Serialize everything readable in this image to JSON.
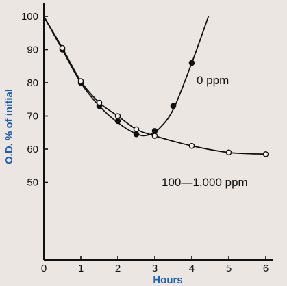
{
  "chart_data": {
    "type": "line",
    "title": "",
    "xlabel": "Hours",
    "ylabel": "O.D. % of initial",
    "xlim": [
      0,
      6.2
    ],
    "ylim": [
      45,
      100
    ],
    "xticks": [
      0,
      1,
      2,
      3,
      4,
      5,
      6
    ],
    "yticks": [
      50,
      60,
      70,
      80,
      90,
      100
    ],
    "grid": false,
    "axis_color": "#111111",
    "xlabel_color": "#1f5fb0",
    "ylabel_color": "#1f5fb0",
    "series": [
      {
        "name": "0 ppm",
        "marker": "filled-circle",
        "points": [
          {
            "x": 0.5,
            "y": 90
          },
          {
            "x": 1.0,
            "y": 80
          },
          {
            "x": 1.5,
            "y": 73
          },
          {
            "x": 2.0,
            "y": 68.5
          },
          {
            "x": 2.5,
            "y": 64.5
          },
          {
            "x": 3.0,
            "y": 65.5
          },
          {
            "x": 3.5,
            "y": 73
          },
          {
            "x": 4.0,
            "y": 86
          }
        ],
        "curve": [
          {
            "x": 0,
            "y": 100
          },
          {
            "x": 0.5,
            "y": 90
          },
          {
            "x": 1.0,
            "y": 80
          },
          {
            "x": 1.5,
            "y": 73
          },
          {
            "x": 2.0,
            "y": 68
          },
          {
            "x": 2.5,
            "y": 64.6
          },
          {
            "x": 2.8,
            "y": 64.2
          },
          {
            "x": 3.1,
            "y": 66
          },
          {
            "x": 3.5,
            "y": 72
          },
          {
            "x": 4.0,
            "y": 86
          },
          {
            "x": 4.45,
            "y": 100
          }
        ]
      },
      {
        "name": "100—1,000 ppm",
        "marker": "open-circle",
        "points": [
          {
            "x": 0.5,
            "y": 90.5
          },
          {
            "x": 1.0,
            "y": 80.5
          },
          {
            "x": 1.5,
            "y": 74
          },
          {
            "x": 2.0,
            "y": 70
          },
          {
            "x": 2.5,
            "y": 66
          },
          {
            "x": 3.0,
            "y": 64
          },
          {
            "x": 4.0,
            "y": 61
          },
          {
            "x": 5.0,
            "y": 59
          },
          {
            "x": 6.0,
            "y": 58.5
          }
        ],
        "curve": [
          {
            "x": 0,
            "y": 100
          },
          {
            "x": 0.5,
            "y": 90.5
          },
          {
            "x": 1.0,
            "y": 80.5
          },
          {
            "x": 1.5,
            "y": 74
          },
          {
            "x": 2.0,
            "y": 70
          },
          {
            "x": 2.5,
            "y": 66
          },
          {
            "x": 3.0,
            "y": 64
          },
          {
            "x": 4.0,
            "y": 61
          },
          {
            "x": 5.0,
            "y": 59
          },
          {
            "x": 6.0,
            "y": 58.5
          }
        ]
      }
    ]
  }
}
